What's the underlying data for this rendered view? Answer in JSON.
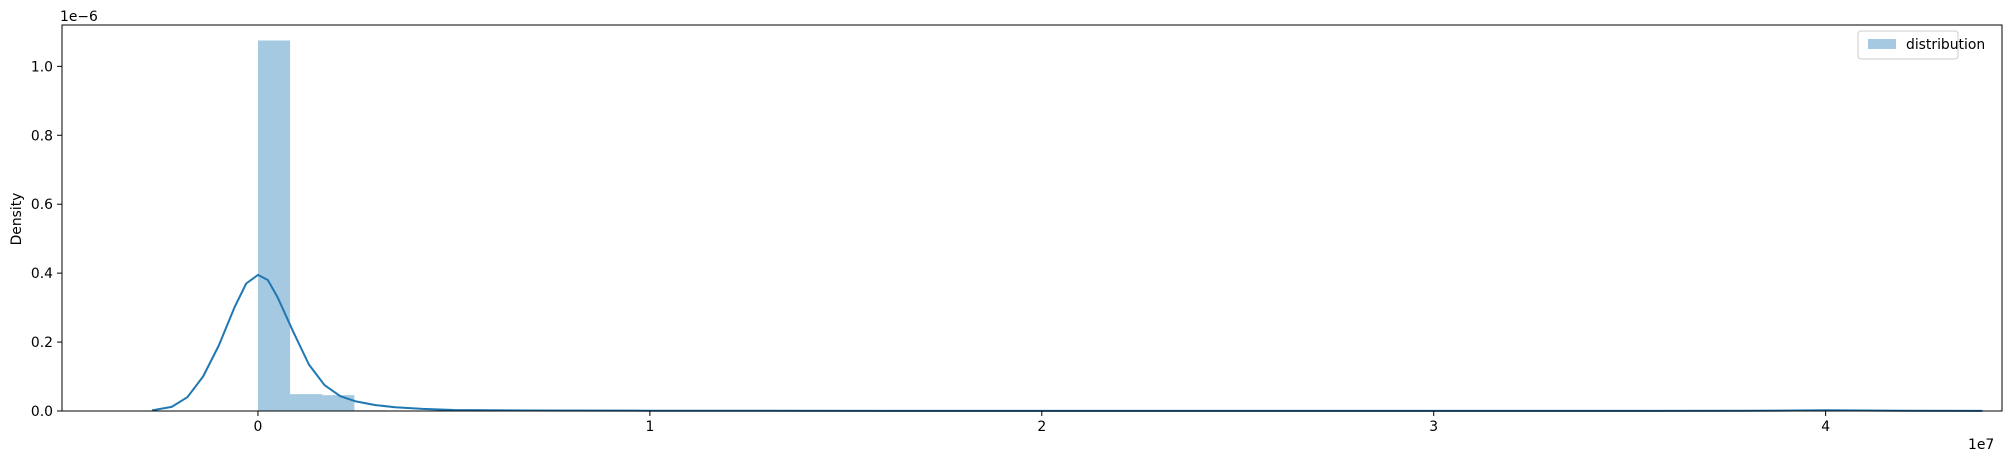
{
  "chart_data": {
    "type": "histogram+kde",
    "title": "",
    "xlabel": "",
    "ylabel": "Density",
    "x_offset_label": "1e7",
    "y_offset_label": "1e−6",
    "xlim": [
      -5000000,
      44500000
    ],
    "ylim": [
      0,
      1.12
    ],
    "x_ticks": [
      0,
      10000000,
      20000000,
      30000000,
      40000000
    ],
    "x_tick_labels": [
      "0",
      "1",
      "2",
      "3",
      "4"
    ],
    "y_ticks": [
      0,
      0.2,
      0.4,
      0.6,
      0.8,
      1.0
    ],
    "y_tick_labels": [
      "0.0",
      "0.2",
      "0.4",
      "0.6",
      "0.8",
      "1.0"
    ],
    "legend": {
      "position": "top-right",
      "entries": [
        "distribution"
      ]
    },
    "color": "#1f77b4",
    "bar_alpha": 0.4,
    "histogram": {
      "bin_width": 820000,
      "bins": [
        {
          "x0": 0,
          "density": 1.075
        },
        {
          "x0": 820000,
          "density": 0.049
        },
        {
          "x0": 1640000,
          "density": 0.046
        },
        {
          "x0": 2460000,
          "density": 0.002
        }
      ]
    },
    "kde": {
      "x": [
        -2700000,
        -2200000,
        -1800000,
        -1400000,
        -1000000,
        -600000,
        -300000,
        0,
        250000,
        500000,
        900000,
        1300000,
        1700000,
        2100000,
        2500000,
        3000000,
        3500000,
        4200000,
        5000000,
        7000000,
        10000000,
        20000000,
        30000000,
        38000000,
        40000000,
        42000000,
        44000000
      ],
      "y": [
        0.002,
        0.012,
        0.04,
        0.1,
        0.19,
        0.3,
        0.37,
        0.395,
        0.38,
        0.33,
        0.23,
        0.135,
        0.075,
        0.043,
        0.028,
        0.017,
        0.011,
        0.006,
        0.003,
        0.0015,
        0.001,
        0.0004,
        0.0004,
        0.0006,
        0.002,
        0.0006,
        0.0002
      ]
    }
  }
}
